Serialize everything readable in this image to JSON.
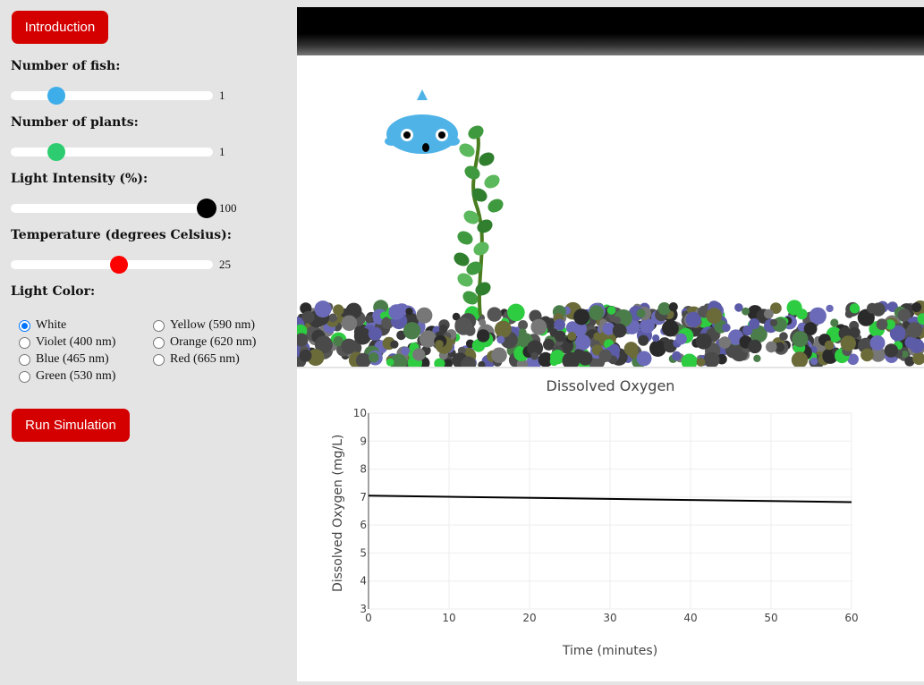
{
  "intro_button": "Introduction",
  "run_button": "Run Simulation",
  "controls": {
    "fish": {
      "label": "Number of fish:",
      "value": "1",
      "fraction": 0.22,
      "color": "#3daee9"
    },
    "plants": {
      "label": "Number of plants:",
      "value": "1",
      "fraction": 0.22,
      "color": "#2ecc71"
    },
    "light": {
      "label": "Light Intensity (%):",
      "value": "100",
      "fraction": 1.0,
      "color": "#000000"
    },
    "temp": {
      "label": "Temperature (degrees Celsius):",
      "value": "25",
      "fraction": 0.5,
      "color": "#ff0000"
    }
  },
  "light_color": {
    "label": "Light Color:",
    "options": [
      {
        "label": "White",
        "selected": true
      },
      {
        "label": "Violet (400 nm)",
        "selected": false
      },
      {
        "label": "Blue (465 nm)",
        "selected": false
      },
      {
        "label": "Green (530 nm)",
        "selected": false
      },
      {
        "label": "Yellow (590 nm)",
        "selected": false
      },
      {
        "label": "Orange (620 nm)",
        "selected": false
      },
      {
        "label": "Red (665 nm)",
        "selected": false
      }
    ]
  },
  "chart_data": {
    "type": "line",
    "title": "Dissolved Oxygen",
    "xlabel": "Time (minutes)",
    "ylabel": "Dissolved Oxygen (mg/L)",
    "xlim": [
      0,
      60
    ],
    "ylim": [
      3,
      10
    ],
    "xticks": [
      0,
      10,
      20,
      30,
      40,
      50,
      60
    ],
    "yticks": [
      3,
      4,
      5,
      6,
      7,
      8,
      9,
      10
    ],
    "grid": true,
    "series": [
      {
        "x": [
          0,
          60
        ],
        "y": [
          7.05,
          6.82
        ],
        "color": "#000000"
      }
    ]
  }
}
